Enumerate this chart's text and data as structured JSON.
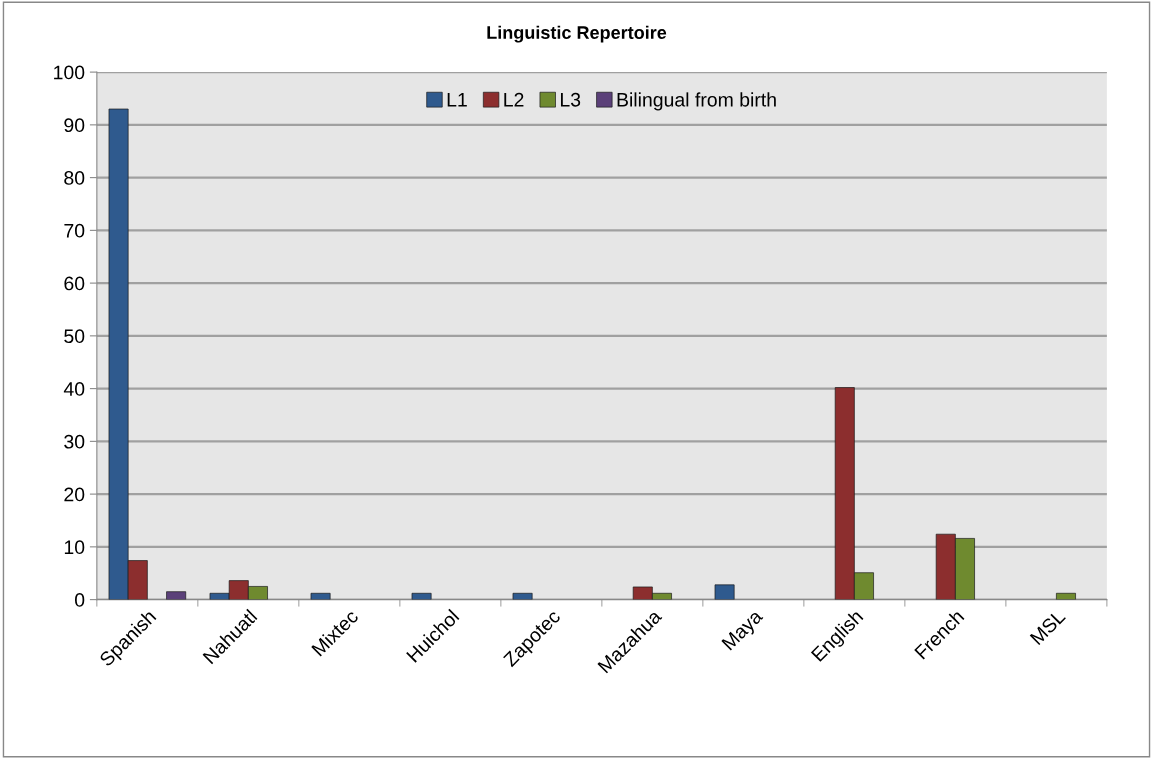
{
  "chart_data": {
    "type": "bar",
    "title": "Linguistic Repertoire",
    "categories": [
      "Spanish",
      "Nahuatl",
      "Mixtec",
      "Huichol",
      "Zapotec",
      "Mazahua",
      "Maya",
      "English",
      "French",
      "MSL"
    ],
    "series": [
      {
        "name": "L1",
        "color": "#2f5a8e",
        "values": [
          93,
          1.2,
          1.2,
          1.2,
          1.2,
          null,
          2.8,
          null,
          null,
          null
        ]
      },
      {
        "name": "L2",
        "color": "#8c2e2e",
        "values": [
          7.4,
          3.6,
          null,
          null,
          null,
          2.4,
          null,
          40.2,
          12.4,
          null
        ]
      },
      {
        "name": "L3",
        "color": "#6f8a2f",
        "values": [
          null,
          2.5,
          null,
          null,
          null,
          1.2,
          null,
          5.1,
          11.6,
          1.2
        ]
      },
      {
        "name": "Bilingual from birth",
        "color": "#5b4079",
        "values": [
          1.5,
          null,
          null,
          null,
          null,
          null,
          null,
          null,
          null,
          null
        ]
      }
    ],
    "ylim": [
      0,
      100
    ],
    "yticks": [
      0,
      10,
      20,
      30,
      40,
      50,
      60,
      70,
      80,
      90,
      100
    ],
    "grid": "y",
    "legend": "top"
  }
}
